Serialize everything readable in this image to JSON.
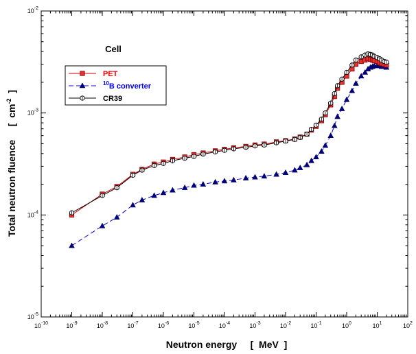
{
  "chart_data": {
    "type": "line",
    "xscale": "log",
    "yscale": "log",
    "xlim": [
      1e-10,
      100
    ],
    "ylim": [
      1e-05,
      0.01
    ],
    "xlabel": "Neutron energy     [  MeV  ]",
    "ylabel": "Total neutron fluence     [  cm",
    "ylabel_exp": "-2",
    "ylabel_tail": "  ]",
    "x_ticks": [
      {
        "base": "10",
        "exp": "-10",
        "value": 1e-10
      },
      {
        "base": "10",
        "exp": "-9",
        "value": 1e-09
      },
      {
        "base": "10",
        "exp": "-8",
        "value": 1e-08
      },
      {
        "base": "10",
        "exp": "-7",
        "value": 1e-07
      },
      {
        "base": "10",
        "exp": "-6",
        "value": 1e-06
      },
      {
        "base": "10",
        "exp": "-5",
        "value": 1e-05
      },
      {
        "base": "10",
        "exp": "-4",
        "value": 0.0001
      },
      {
        "base": "10",
        "exp": "-3",
        "value": 0.001
      },
      {
        "base": "10",
        "exp": "-2",
        "value": 0.01
      },
      {
        "base": "10",
        "exp": "-1",
        "value": 0.1
      },
      {
        "base": "10",
        "exp": "0",
        "value": 1
      },
      {
        "base": "10",
        "exp": "1",
        "value": 10
      },
      {
        "base": "10",
        "exp": "2",
        "value": 100
      }
    ],
    "y_ticks": [
      {
        "base": "10",
        "exp": "-5",
        "value": 1e-05
      },
      {
        "base": "10",
        "exp": "-4",
        "value": 0.0001
      },
      {
        "base": "10",
        "exp": "-3",
        "value": 0.001
      },
      {
        "base": "10",
        "exp": "-2",
        "value": 0.01
      }
    ],
    "legend": {
      "title": "Cell",
      "placement": "upper-left",
      "entries": [
        {
          "label": "PET",
          "color": "#ff0000",
          "text_color": "#ff0000"
        },
        {
          "label_sup": "10",
          "label": "B converter",
          "color": "#00008b",
          "text_color": "#0000ff"
        },
        {
          "label": "CR39",
          "color": "#000000",
          "text_color": "#000000"
        }
      ]
    },
    "series": [
      {
        "name": "PET",
        "line_color": "#cc0000",
        "marker": "square",
        "marker_fill": "#e83030",
        "marker_stroke": "#7a0000",
        "dash": "",
        "x": [
          1e-09,
          1e-08,
          3e-08,
          1e-07,
          2e-07,
          5e-07,
          1e-06,
          2e-06,
          5e-06,
          1e-05,
          2e-05,
          5e-05,
          0.0001,
          0.0002,
          0.0005,
          0.001,
          0.002,
          0.005,
          0.01,
          0.02,
          0.03,
          0.05,
          0.07,
          0.1,
          0.15,
          0.2,
          0.3,
          0.4,
          0.5,
          0.7,
          1.0,
          1.5,
          2.0,
          3.0,
          4.0,
          5.0,
          6.0,
          7.0,
          8.0,
          10,
          12,
          14,
          17,
          20
        ],
        "y": [
          0.0001,
          0.00016,
          0.00019,
          0.00025,
          0.00028,
          0.000315,
          0.00033,
          0.00035,
          0.00037,
          0.00039,
          0.000405,
          0.000425,
          0.00044,
          0.000455,
          0.00047,
          0.000485,
          0.000495,
          0.00052,
          0.000535,
          0.000555,
          0.00058,
          0.00062,
          0.00068,
          0.00074,
          0.00084,
          0.00096,
          0.0012,
          0.00145,
          0.00175,
          0.002,
          0.0023,
          0.0027,
          0.003,
          0.0032,
          0.0033,
          0.0034,
          0.00335,
          0.0033,
          0.00325,
          0.0032,
          0.0031,
          0.00305,
          0.003,
          0.00295
        ]
      },
      {
        "name": "10B converter",
        "line_color": "#0000cc",
        "marker": "triangle",
        "marker_fill": "#000080",
        "marker_stroke": "#000060",
        "dash": "7,4",
        "x": [
          1e-09,
          1e-08,
          3e-08,
          1e-07,
          2e-07,
          5e-07,
          1e-06,
          2e-06,
          5e-06,
          1e-05,
          2e-05,
          5e-05,
          0.0001,
          0.0002,
          0.0005,
          0.001,
          0.002,
          0.005,
          0.01,
          0.02,
          0.03,
          0.05,
          0.07,
          0.1,
          0.15,
          0.2,
          0.3,
          0.4,
          0.5,
          0.7,
          1.0,
          1.5,
          2.0,
          3.0,
          4.0,
          5.0,
          6.0,
          7.0,
          8.0,
          10,
          12,
          14,
          17,
          20
        ],
        "y": [
          5e-05,
          7.8e-05,
          9.5e-05,
          0.000125,
          0.00014,
          0.000155,
          0.000165,
          0.000175,
          0.000185,
          0.000195,
          0.0002,
          0.00021,
          0.000215,
          0.00022,
          0.00023,
          0.000235,
          0.00024,
          0.00025,
          0.00026,
          0.000275,
          0.00029,
          0.00031,
          0.00034,
          0.00037,
          0.00042,
          0.00048,
          0.0006,
          0.00075,
          0.00092,
          0.0011,
          0.00135,
          0.00165,
          0.00195,
          0.0023,
          0.0025,
          0.0027,
          0.0028,
          0.00285,
          0.0029,
          0.0029,
          0.0029,
          0.00285,
          0.00285,
          0.0028
        ]
      },
      {
        "name": "CR39",
        "line_color": "#000000",
        "marker": "circle-cross",
        "marker_fill": "#ffffff",
        "marker_stroke": "#000000",
        "dash": "",
        "x": [
          1e-09,
          1e-08,
          3e-08,
          1e-07,
          2e-07,
          5e-07,
          1e-06,
          2e-06,
          5e-06,
          1e-05,
          2e-05,
          5e-05,
          0.0001,
          0.0002,
          0.0005,
          0.001,
          0.002,
          0.005,
          0.01,
          0.02,
          0.03,
          0.05,
          0.07,
          0.1,
          0.15,
          0.2,
          0.3,
          0.4,
          0.5,
          0.7,
          1.0,
          1.5,
          2.0,
          3.0,
          4.0,
          5.0,
          6.0,
          7.0,
          8.0,
          10,
          12,
          14,
          17,
          20
        ],
        "y": [
          0.000105,
          0.000155,
          0.000185,
          0.000245,
          0.000275,
          0.000305,
          0.00032,
          0.00034,
          0.00036,
          0.000375,
          0.000395,
          0.000415,
          0.00043,
          0.000445,
          0.00046,
          0.000475,
          0.000485,
          0.00051,
          0.00053,
          0.00055,
          0.000575,
          0.00062,
          0.00069,
          0.00076,
          0.00087,
          0.001,
          0.00125,
          0.00155,
          0.00185,
          0.00215,
          0.0025,
          0.00295,
          0.0033,
          0.00355,
          0.0037,
          0.0038,
          0.00375,
          0.0037,
          0.0036,
          0.0035,
          0.0034,
          0.0033,
          0.0032,
          0.00315
        ]
      }
    ]
  }
}
